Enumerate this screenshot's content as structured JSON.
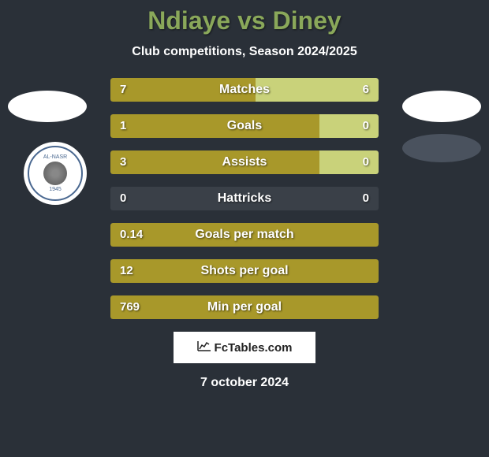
{
  "title": "Ndiaye vs Diney",
  "subtitle": "Club competitions, Season 2024/2025",
  "date": "7 october 2024",
  "watermark": "FcTables.com",
  "club_logo": {
    "top_text": "AL-NASR",
    "year": "1945"
  },
  "colors": {
    "background": "#2a3038",
    "title": "#8aa85a",
    "text": "#ffffff",
    "bar_left": "#a8982a",
    "bar_right": "#c9d27a",
    "bar_full": "#a8982a",
    "ellipse": "#ffffff",
    "ellipse_dark": "#4a525e"
  },
  "bars": [
    {
      "label": "Matches",
      "left_value": "7",
      "right_value": "6",
      "left_num": 7,
      "right_num": 6,
      "type": "split",
      "left_pct": 54,
      "right_pct": 46,
      "left_color": "#a8982a",
      "right_color": "#c9d27a"
    },
    {
      "label": "Goals",
      "left_value": "1",
      "right_value": "0",
      "left_num": 1,
      "right_num": 0,
      "type": "split",
      "left_pct": 78,
      "right_pct": 22,
      "left_color": "#a8982a",
      "right_color": "#c9d27a"
    },
    {
      "label": "Assists",
      "left_value": "3",
      "right_value": "0",
      "left_num": 3,
      "right_num": 0,
      "type": "split",
      "left_pct": 78,
      "right_pct": 22,
      "left_color": "#a8982a",
      "right_color": "#c9d27a"
    },
    {
      "label": "Hattricks",
      "left_value": "0",
      "right_value": "0",
      "left_num": 0,
      "right_num": 0,
      "type": "empty",
      "left_pct": 0,
      "right_pct": 0,
      "left_color": "#3a4048",
      "right_color": "#3a4048"
    },
    {
      "label": "Goals per match",
      "left_value": "0.14",
      "right_value": "",
      "type": "full",
      "full_color": "#a8982a"
    },
    {
      "label": "Shots per goal",
      "left_value": "12",
      "right_value": "",
      "type": "full",
      "full_color": "#a8982a"
    },
    {
      "label": "Min per goal",
      "left_value": "769",
      "right_value": "",
      "type": "full",
      "full_color": "#a8982a"
    }
  ]
}
